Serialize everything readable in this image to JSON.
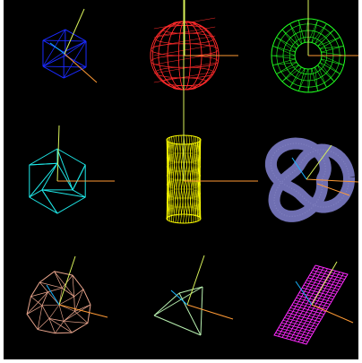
{
  "viewport": {
    "name": "3d-primitives-viewport",
    "background": "#000000",
    "axis_colors": {
      "x": "#ff9a35",
      "y": "#d8f25a",
      "z": "#19b6ff"
    }
  },
  "objects": [
    {
      "name": "wire-cube",
      "shape": "cube",
      "color": "#1a2aff"
    },
    {
      "name": "wire-sphere",
      "shape": "sphere",
      "color": "#ff2a2a"
    },
    {
      "name": "wire-torus",
      "shape": "torus",
      "color": "#20ff20"
    },
    {
      "name": "wire-icosahedron",
      "shape": "icosahedron",
      "color": "#1ee6e6"
    },
    {
      "name": "wire-cylinder",
      "shape": "cylinder",
      "color": "#ffff00"
    },
    {
      "name": "torus-knot",
      "shape": "torus-knot",
      "color": "#6f6fb2"
    },
    {
      "name": "wire-geosphere",
      "shape": "geosphere",
      "color": "#e8a48c"
    },
    {
      "name": "wire-tetrahedron",
      "shape": "tetrahedron",
      "color": "#b8f0b0"
    },
    {
      "name": "wire-plane",
      "shape": "plane",
      "color": "#ff2aff"
    }
  ]
}
